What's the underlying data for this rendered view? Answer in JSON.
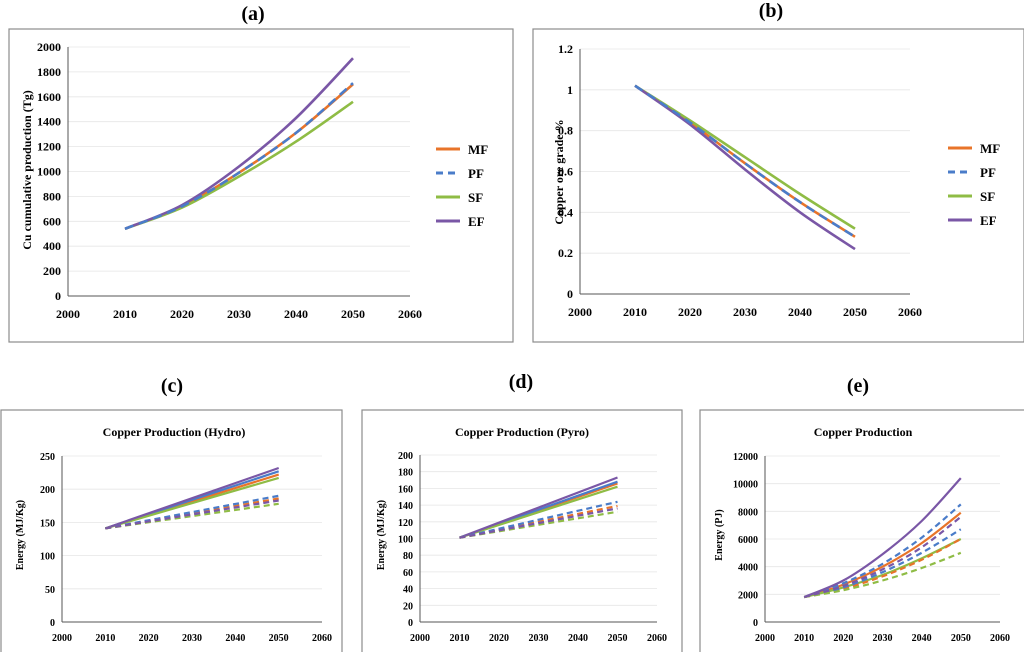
{
  "colors": {
    "MF": "#e8742a",
    "PF": "#4a7cc9",
    "SF": "#8fbc45",
    "EF": "#7a57a6"
  },
  "chart_data": [
    {
      "id": "a",
      "panel_label": "(a)",
      "type": "line",
      "title": "",
      "xlabel": "",
      "ylabel": "Cu cumulative production (Tg)",
      "xlim": [
        2000,
        2060
      ],
      "xticks": [
        2000,
        2010,
        2020,
        2030,
        2040,
        2050,
        2060
      ],
      "ylim": [
        0,
        2000
      ],
      "yticks": [
        0,
        200,
        400,
        600,
        800,
        1000,
        1200,
        1400,
        1600,
        1800,
        2000
      ],
      "legend": "right",
      "series": [
        {
          "name": "MF",
          "style": "solid",
          "x": [
            2010,
            2020,
            2030,
            2040,
            2050
          ],
          "y": [
            540,
            720,
            990,
            1310,
            1700
          ]
        },
        {
          "name": "PF",
          "style": "dashed",
          "x": [
            2010,
            2020,
            2030,
            2040,
            2050
          ],
          "y": [
            540,
            720,
            990,
            1310,
            1710
          ]
        },
        {
          "name": "SF",
          "style": "solid",
          "x": [
            2010,
            2020,
            2030,
            2040,
            2050
          ],
          "y": [
            540,
            710,
            960,
            1240,
            1560
          ]
        },
        {
          "name": "EF",
          "style": "solid",
          "x": [
            2010,
            2020,
            2030,
            2040,
            2050
          ],
          "y": [
            540,
            730,
            1040,
            1430,
            1910
          ]
        }
      ]
    },
    {
      "id": "b",
      "panel_label": "(b)",
      "type": "line",
      "title": "",
      "xlabel": "",
      "ylabel": "Copper ore grade %",
      "xlim": [
        2000,
        2060
      ],
      "xticks": [
        2000,
        2010,
        2020,
        2030,
        2040,
        2050,
        2060
      ],
      "ylim": [
        0,
        1.2
      ],
      "yticks": [
        "0",
        "0.2",
        "0.4",
        "0.6",
        "0.8",
        "1",
        "1.2"
      ],
      "legend": "right",
      "series": [
        {
          "name": "MF",
          "style": "solid",
          "x": [
            2010,
            2020,
            2030,
            2040,
            2050
          ],
          "y": [
            1.02,
            0.84,
            0.64,
            0.45,
            0.28
          ]
        },
        {
          "name": "PF",
          "style": "dashed",
          "x": [
            2010,
            2020,
            2030,
            2040,
            2050
          ],
          "y": [
            1.02,
            0.84,
            0.64,
            0.45,
            0.28
          ]
        },
        {
          "name": "SF",
          "style": "solid",
          "x": [
            2010,
            2020,
            2030,
            2040,
            2050
          ],
          "y": [
            1.02,
            0.85,
            0.67,
            0.49,
            0.32
          ]
        },
        {
          "name": "EF",
          "style": "solid",
          "x": [
            2010,
            2020,
            2030,
            2040,
            2050
          ],
          "y": [
            1.02,
            0.83,
            0.61,
            0.4,
            0.22
          ]
        }
      ]
    },
    {
      "id": "c",
      "panel_label": "(c)",
      "type": "line",
      "title": "Copper Production (Hydro)",
      "xlabel": "",
      "ylabel": "Energy (MJ/Kg)",
      "xlim": [
        2000,
        2060
      ],
      "xticks": [
        2000,
        2010,
        2020,
        2030,
        2040,
        2050,
        2060
      ],
      "ylim": [
        0,
        250
      ],
      "yticks": [
        0,
        50,
        100,
        150,
        200,
        250
      ],
      "legend": "none",
      "series": [
        {
          "name": "MF",
          "style": "solid",
          "x": [
            2010,
            2050
          ],
          "y": [
            141,
            222
          ]
        },
        {
          "name": "PF",
          "style": "solid",
          "x": [
            2010,
            2050
          ],
          "y": [
            141,
            227
          ]
        },
        {
          "name": "SF",
          "style": "solid",
          "x": [
            2010,
            2050
          ],
          "y": [
            141,
            217
          ]
        },
        {
          "name": "EF",
          "style": "solid",
          "x": [
            2010,
            2050
          ],
          "y": [
            141,
            232
          ]
        },
        {
          "name": "MF",
          "style": "dashed",
          "x": [
            2010,
            2050
          ],
          "y": [
            141,
            186
          ]
        },
        {
          "name": "PF",
          "style": "dashed",
          "x": [
            2010,
            2050
          ],
          "y": [
            141,
            190
          ]
        },
        {
          "name": "SF",
          "style": "dashed",
          "x": [
            2010,
            2050
          ],
          "y": [
            141,
            178
          ]
        },
        {
          "name": "EF",
          "style": "dashed",
          "x": [
            2010,
            2050
          ],
          "y": [
            141,
            183
          ]
        }
      ]
    },
    {
      "id": "d",
      "panel_label": "(d)",
      "type": "line",
      "title": "Copper Production (Pyro)",
      "xlabel": "",
      "ylabel": "Energy (MJ/Kg)",
      "xlim": [
        2000,
        2060
      ],
      "xticks": [
        2000,
        2010,
        2020,
        2030,
        2040,
        2050,
        2060
      ],
      "ylim": [
        0,
        200
      ],
      "yticks": [
        0,
        20,
        40,
        60,
        80,
        100,
        120,
        140,
        160,
        180,
        200
      ],
      "legend": "none",
      "series": [
        {
          "name": "MF",
          "style": "solid",
          "x": [
            2010,
            2050
          ],
          "y": [
            101,
            166
          ]
        },
        {
          "name": "PF",
          "style": "solid",
          "x": [
            2010,
            2050
          ],
          "y": [
            101,
            168
          ]
        },
        {
          "name": "SF",
          "style": "solid",
          "x": [
            2010,
            2050
          ],
          "y": [
            101,
            162
          ]
        },
        {
          "name": "EF",
          "style": "solid",
          "x": [
            2010,
            2050
          ],
          "y": [
            101,
            173
          ]
        },
        {
          "name": "MF",
          "style": "dashed",
          "x": [
            2010,
            2050
          ],
          "y": [
            101,
            139
          ]
        },
        {
          "name": "PF",
          "style": "dashed",
          "x": [
            2010,
            2050
          ],
          "y": [
            101,
            144
          ]
        },
        {
          "name": "SF",
          "style": "dashed",
          "x": [
            2010,
            2050
          ],
          "y": [
            101,
            132
          ]
        },
        {
          "name": "EF",
          "style": "dashed",
          "x": [
            2010,
            2050
          ],
          "y": [
            101,
            136
          ]
        }
      ]
    },
    {
      "id": "e",
      "panel_label": "(e)",
      "type": "line",
      "title": "Copper Production",
      "xlabel": "",
      "ylabel": "Energy (PJ)",
      "xlim": [
        2000,
        2060
      ],
      "xticks": [
        2000,
        2010,
        2020,
        2030,
        2040,
        2050,
        2060
      ],
      "ylim": [
        0,
        12000
      ],
      "yticks": [
        0,
        2000,
        4000,
        6000,
        8000,
        10000,
        12000
      ],
      "legend": "none",
      "series": [
        {
          "name": "MF",
          "style": "solid",
          "x": [
            2010,
            2020,
            2030,
            2040,
            2050
          ],
          "y": [
            1800,
            2700,
            4000,
            5700,
            7900
          ]
        },
        {
          "name": "PF",
          "style": "dashed",
          "x": [
            2010,
            2020,
            2030,
            2040,
            2050
          ],
          "y": [
            1800,
            2800,
            4200,
            6100,
            8500
          ]
        },
        {
          "name": "SF",
          "style": "solid",
          "x": [
            2010,
            2020,
            2030,
            2040,
            2050
          ],
          "y": [
            1800,
            2500,
            3400,
            4600,
            6000
          ]
        },
        {
          "name": "EF",
          "style": "solid",
          "x": [
            2010,
            2020,
            2030,
            2040,
            2050
          ],
          "y": [
            1800,
            3000,
            4900,
            7300,
            10400
          ]
        },
        {
          "name": "MF",
          "style": "dashed",
          "x": [
            2010,
            2020,
            2030,
            2040,
            2050
          ],
          "y": [
            1800,
            2400,
            3300,
            4500,
            6000
          ]
        },
        {
          "name": "PF",
          "style": "dashed",
          "x": [
            2010,
            2020,
            2030,
            2040,
            2050
          ],
          "y": [
            1800,
            2500,
            3600,
            5000,
            6700
          ]
        },
        {
          "name": "SF",
          "style": "dashed",
          "x": [
            2010,
            2020,
            2030,
            2040,
            2050
          ],
          "y": [
            1800,
            2300,
            3000,
            3900,
            5000
          ]
        },
        {
          "name": "EF",
          "style": "dashed",
          "x": [
            2010,
            2020,
            2030,
            2040,
            2050
          ],
          "y": [
            1800,
            2600,
            3800,
            5400,
            7600
          ]
        }
      ]
    }
  ]
}
